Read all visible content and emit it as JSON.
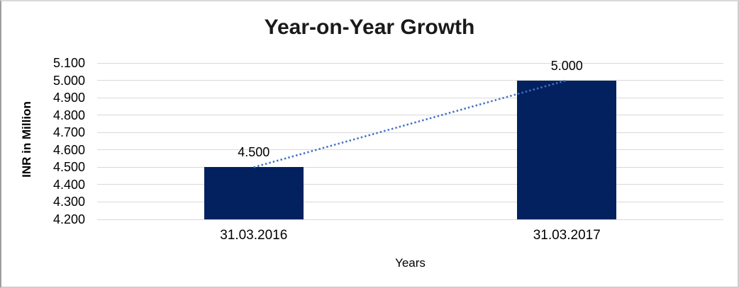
{
  "chart_data": {
    "type": "bar",
    "title": "Year-on-Year Growth",
    "xlabel": "Years",
    "ylabel": "INR in Million",
    "categories": [
      "31.03.2016",
      "31.03.2017"
    ],
    "values": [
      4.5,
      5.0
    ],
    "data_labels": [
      "4.500",
      "5.000"
    ],
    "ytick_labels": [
      "5.100",
      "5.000",
      "4.900",
      "4.800",
      "4.700",
      "4.600",
      "4.500",
      "4.400",
      "4.300",
      "4.200"
    ],
    "ytick_values": [
      5.1,
      5.0,
      4.9,
      4.8,
      4.7,
      4.6,
      4.5,
      4.4,
      4.3,
      4.2
    ],
    "ylim": [
      4.2,
      5.1
    ],
    "grid": true,
    "legend_position": "none",
    "trendline": {
      "type": "linear",
      "style": "dotted",
      "color": "#4472C4",
      "from_value": 4.5,
      "to_value": 5.0
    },
    "colors": {
      "bar": "#02215E",
      "gridline": "#D9D9D9",
      "text": "#000000"
    }
  }
}
